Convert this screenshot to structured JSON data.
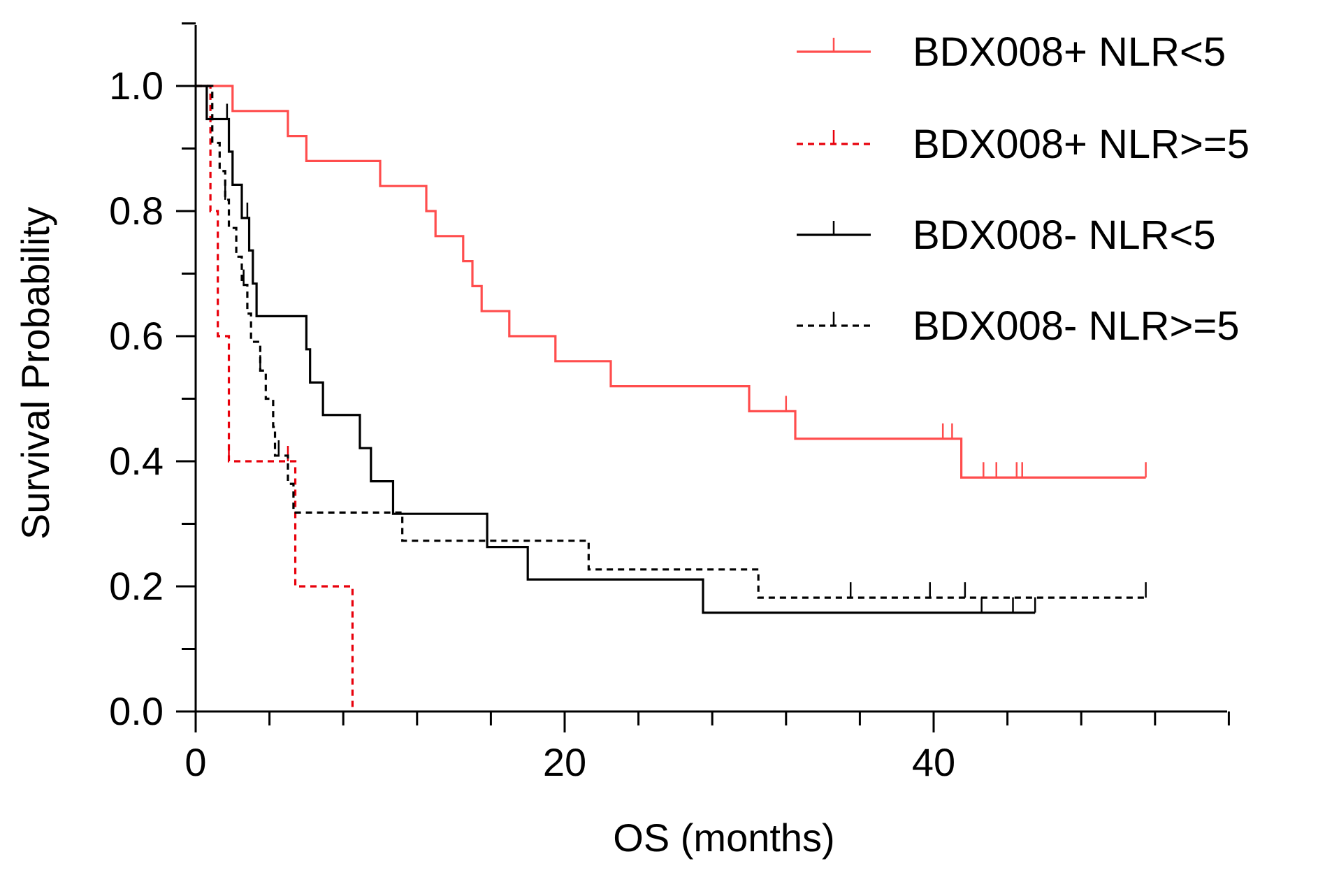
{
  "chart_data": {
    "type": "line",
    "subtype": "kaplan-meier",
    "title": "",
    "xlabel": "OS (months)",
    "ylabel": "Survival Probability",
    "xlim": [
      0,
      56
    ],
    "ylim": [
      0,
      1.1
    ],
    "x_major_ticks": [
      0,
      20,
      40
    ],
    "x_tick_labels": [
      "0",
      "20",
      "40"
    ],
    "x_minor_step": 4,
    "y_major_ticks": [
      0.0,
      0.2,
      0.4,
      0.6,
      0.8,
      1.0
    ],
    "y_tick_labels": [
      "0.0",
      "0.2",
      "0.4",
      "0.6",
      "0.8",
      "1.0"
    ],
    "legend_position": "top-right",
    "series": [
      {
        "name": "BDX008+ NLR<5",
        "color": "#ff4d4d",
        "dash": "solid",
        "steps": [
          [
            0,
            1.0
          ],
          [
            2,
            0.96
          ],
          [
            5,
            0.92
          ],
          [
            6,
            0.88
          ],
          [
            10,
            0.84
          ],
          [
            12.5,
            0.8
          ],
          [
            13,
            0.76
          ],
          [
            14.5,
            0.72
          ],
          [
            15,
            0.68
          ],
          [
            15.5,
            0.64
          ],
          [
            17,
            0.6
          ],
          [
            19.5,
            0.56
          ],
          [
            22.5,
            0.52
          ],
          [
            30,
            0.48
          ],
          [
            32.5,
            0.436
          ],
          [
            41.5,
            0.374
          ],
          [
            51.5,
            0.374
          ]
        ],
        "censor": [
          32,
          40.5,
          41,
          41.5,
          42.7,
          43.4,
          44.5,
          44.8,
          51.5
        ]
      },
      {
        "name": "BDX008+ NLR>=5",
        "color": "#e8000b",
        "dash": "dashed",
        "steps": [
          [
            0,
            1.0
          ],
          [
            0.8,
            0.8
          ],
          [
            1.2,
            0.6
          ],
          [
            1.8,
            0.4
          ],
          [
            5.4,
            0.2
          ],
          [
            8.5,
            0.0
          ]
        ],
        "censor": [
          1.8,
          5.0
        ]
      },
      {
        "name": "BDX008- NLR<5",
        "color": "#000000",
        "dash": "solid",
        "steps": [
          [
            0,
            1.0
          ],
          [
            0.6,
            0.947
          ],
          [
            1.8,
            0.895
          ],
          [
            2,
            0.842
          ],
          [
            2.5,
            0.789
          ],
          [
            2.9,
            0.737
          ],
          [
            3.1,
            0.684
          ],
          [
            3.3,
            0.632
          ],
          [
            6,
            0.579
          ],
          [
            6.2,
            0.526
          ],
          [
            6.9,
            0.474
          ],
          [
            8.9,
            0.421
          ],
          [
            9.5,
            0.368
          ],
          [
            10.7,
            0.316
          ],
          [
            15.8,
            0.263
          ],
          [
            18,
            0.211
          ],
          [
            27.5,
            0.158
          ],
          [
            45.5,
            0.158
          ]
        ],
        "censor": [
          1.7,
          2.8,
          42.6,
          44.3,
          45.5
        ]
      },
      {
        "name": "BDX008- NLR>=5",
        "color": "#000000",
        "dash": "dashed",
        "steps": [
          [
            0,
            1.0
          ],
          [
            0.9,
            0.909
          ],
          [
            1.3,
            0.864
          ],
          [
            1.6,
            0.818
          ],
          [
            1.8,
            0.773
          ],
          [
            2.2,
            0.727
          ],
          [
            2.5,
            0.682
          ],
          [
            2.8,
            0.636
          ],
          [
            3,
            0.591
          ],
          [
            3.5,
            0.545
          ],
          [
            3.8,
            0.5
          ],
          [
            4.2,
            0.455
          ],
          [
            4.3,
            0.409
          ],
          [
            5,
            0.364
          ],
          [
            5.3,
            0.318
          ],
          [
            11.2,
            0.273
          ],
          [
            21.3,
            0.227
          ],
          [
            30.5,
            0.182
          ],
          [
            51.5,
            0.182
          ]
        ],
        "censor": [
          1.6,
          2.6,
          3.5,
          4.5,
          35.5,
          39.8,
          41.7,
          51.5
        ]
      }
    ]
  }
}
